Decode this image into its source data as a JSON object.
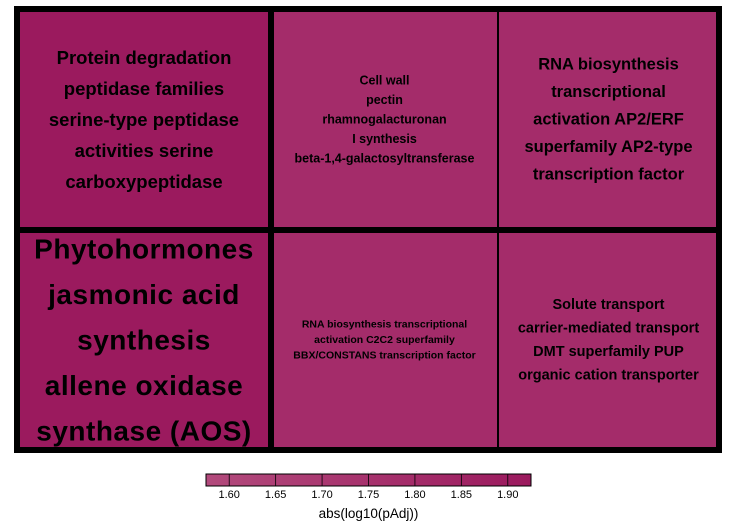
{
  "chart_data": {
    "type": "treemap",
    "tiles": [
      {
        "lines": [
          "Protein degradation",
          "peptidase families",
          "serine-type peptidase",
          "activities serine",
          "carboxypeptidase"
        ],
        "value": 1.91,
        "color": "#9b1a5e"
      },
      {
        "lines": [
          "Cell wall",
          "pectin",
          "rhamnogalacturonan",
          "I synthesis",
          "beta-1,4-galactosyltransferase"
        ],
        "value": 1.76,
        "color": "#a42c6a"
      },
      {
        "lines": [
          "RNA biosynthesis",
          "transcriptional",
          "activation AP2/ERF",
          "superfamily AP2-type",
          "transcription factor"
        ],
        "value": 1.76,
        "color": "#a42c6a"
      },
      {
        "lines": [
          "Phytohormones",
          "jasmonic acid",
          "synthesis",
          "allene oxidase",
          "synthase (AOS)"
        ],
        "value": 1.91,
        "color": "#9b1a5e"
      },
      {
        "lines": [
          "RNA biosynthesis transcriptional",
          "activation C2C2 superfamily",
          "BBX/CONSTANS transcription factor"
        ],
        "value": 1.76,
        "color": "#a42c6a"
      },
      {
        "lines": [
          "Solute transport",
          "carrier-mediated transport",
          "DMT superfamily PUP",
          "organic cation transporter"
        ],
        "value": 1.76,
        "color": "#a42c6a"
      }
    ],
    "legend": {
      "title": "abs(log10(pAdj))",
      "ticks": [
        "1.60",
        "1.65",
        "1.70",
        "1.75",
        "1.80",
        "1.85",
        "1.90"
      ],
      "range": [
        1.575,
        1.925
      ],
      "color_low": "#b24a7c",
      "color_high": "#9b1a5e"
    }
  }
}
